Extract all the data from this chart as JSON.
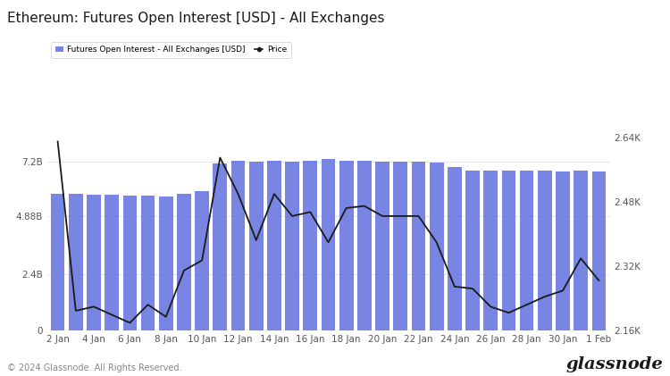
{
  "title": "Ethereum: Futures Open Interest [USD] - All Exchanges",
  "bar_color": "#6674DE",
  "line_color": "#1a1a1a",
  "background_color": "#ffffff",
  "plot_bg_color": "#ffffff",
  "legend_labels": [
    "Futures Open Interest - All Exchanges [USD]",
    "Price"
  ],
  "x_labels": [
    "2 Jan",
    "4 Jan",
    "6 Jan",
    "8 Jan",
    "10 Jan",
    "12 Jan",
    "14 Jan",
    "16 Jan",
    "18 Jan",
    "20 Jan",
    "22 Jan",
    "24 Jan",
    "26 Jan",
    "28 Jan",
    "30 Jan",
    "1 Feb"
  ],
  "bar_values": [
    5.85,
    5.82,
    5.78,
    5.78,
    5.75,
    5.75,
    5.72,
    5.82,
    5.95,
    7.12,
    7.25,
    7.22,
    7.25,
    7.22,
    7.24,
    7.32,
    7.24,
    7.23,
    7.22,
    7.22,
    7.21,
    7.18,
    6.97,
    6.82,
    6.82,
    6.84,
    6.84,
    6.82,
    6.8,
    6.84,
    6.8
  ],
  "price_values": [
    2630,
    2210,
    2220,
    2200,
    2180,
    2225,
    2195,
    2310,
    2335,
    2590,
    2500,
    2385,
    2500,
    2445,
    2455,
    2380,
    2465,
    2470,
    2445,
    2445,
    2445,
    2380,
    2270,
    2265,
    2220,
    2205,
    2225,
    2245,
    2260,
    2340,
    2285
  ],
  "ylim_left": [
    0,
    9.6
  ],
  "ylim_right": [
    2160,
    2720
  ],
  "yticks_left": [
    0,
    2.4,
    4.88,
    7.2
  ],
  "yticks_left_labels": [
    "0",
    "2.4B",
    "4.88B",
    "7.2B"
  ],
  "yticks_right": [
    2160,
    2320,
    2480,
    2640
  ],
  "yticks_right_labels": [
    "2.16K",
    "2.32K",
    "2.48K",
    "2.64K"
  ],
  "footer_text": "© 2024 Glassnode. All Rights Reserved.",
  "watermark": "glassnode",
  "grid_color": "#e0e0e0",
  "tick_label_color": "#555555",
  "title_fontsize": 11,
  "axis_fontsize": 7.5,
  "footer_fontsize": 7
}
